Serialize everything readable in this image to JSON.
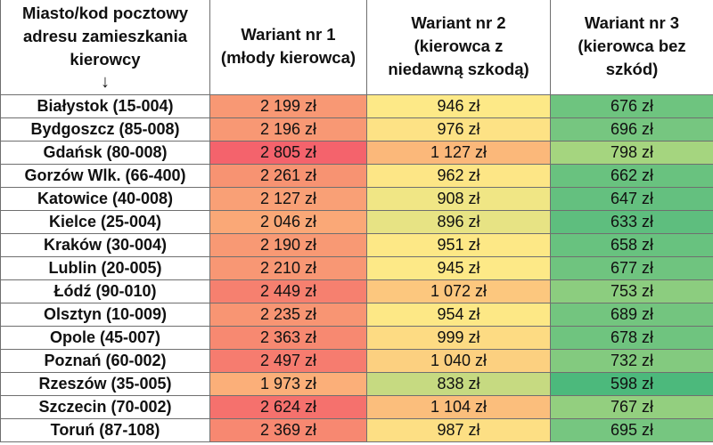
{
  "headers": {
    "city": [
      "Miasto/kod pocztowy",
      "adresu zamieszkania",
      "kierowcy"
    ],
    "city_arrow": "↓",
    "v1": [
      "Wariant nr 1",
      "(młody kierowca)"
    ],
    "v2": [
      "Wariant nr 2",
      "(kierowca z",
      "niedawną szkodą)"
    ],
    "v3": [
      "Wariant nr 3",
      "(kierowca bez",
      "szkód)"
    ]
  },
  "rows": [
    {
      "city": "Białystok (15-004)",
      "v1": "2 199 zł",
      "v2": "946 zł",
      "v3": "676 zł",
      "c1": "#f89874",
      "c2": "#fde987",
      "c3": "#6ec47f"
    },
    {
      "city": "Bydgoszcz (85-008)",
      "v1": "2 196 zł",
      "v2": "976 zł",
      "v3": "696 zł",
      "c1": "#f89874",
      "c2": "#fde285",
      "c3": "#76c680"
    },
    {
      "city": "Gdańsk (80-008)",
      "v1": "2 805 zł",
      "v2": "1 127 zł",
      "v3": "798 zł",
      "c1": "#f4636c",
      "c2": "#fbb87a",
      "c3": "#a5d57f"
    },
    {
      "city": "Gorzów Wlk. (66-400)",
      "v1": "2 261 zł",
      "v2": "962 zł",
      "v3": "662 zł",
      "c1": "#f79372",
      "c2": "#fde686",
      "c3": "#69c27f"
    },
    {
      "city": "Katowice (40-008)",
      "v1": "2 127 zł",
      "v2": "908 zł",
      "v3": "647 zł",
      "c1": "#f9a076",
      "c2": "#f0e685",
      "c3": "#64c07f"
    },
    {
      "city": "Kielce (25-004)",
      "v1": "2 046 zł",
      "v2": "896 zł",
      "v3": "633 zł",
      "c1": "#faa877",
      "c2": "#e7e384",
      "c3": "#5ebe7e"
    },
    {
      "city": "Kraków (30-004)",
      "v1": "2 190 zł",
      "v2": "951 zł",
      "v3": "658 zł",
      "c1": "#f89974",
      "c2": "#fde886",
      "c3": "#68c27f"
    },
    {
      "city": "Lublin (20-005)",
      "v1": "2 210 zł",
      "v2": "945 zł",
      "v3": "677 zł",
      "c1": "#f89774",
      "c2": "#fde987",
      "c3": "#6fc47f"
    },
    {
      "city": "Łódź (90-010)",
      "v1": "2 449 zł",
      "v2": "1 072 zł",
      "v3": "753 zł",
      "c1": "#f6806f",
      "c2": "#fcc77e",
      "c3": "#8ccd7f"
    },
    {
      "city": "Olsztyn (10-009)",
      "v1": "2 235 zł",
      "v2": "954 zł",
      "v3": "689 zł",
      "c1": "#f89573",
      "c2": "#fde886",
      "c3": "#73c57f"
    },
    {
      "city": "Opole (45-007)",
      "v1": "2 363 zł",
      "v2": "999 zł",
      "v3": "678 zł",
      "c1": "#f78971",
      "c2": "#fddb83",
      "c3": "#6fc47f"
    },
    {
      "city": "Poznań (60-002)",
      "v1": "2 497 zł",
      "v2": "1 040 zł",
      "v3": "732 zł",
      "c1": "#f67c6f",
      "c2": "#fcd080",
      "c3": "#83ca7f"
    },
    {
      "city": "Rzeszów (35-005)",
      "v1": "1 973 zł",
      "v2": "838 zł",
      "v3": "598 zł",
      "c1": "#fbaf79",
      "c2": "#c6da81",
      "c3": "#4cb97c"
    },
    {
      "city": "Szczecin (70-002)",
      "v1": "2 624 zł",
      "v2": "1 104 zł",
      "v3": "767 zł",
      "c1": "#f5716d",
      "c2": "#fbbe7c",
      "c3": "#93cf7f"
    },
    {
      "city": "Toruń (87-108)",
      "v1": "2 369 zł",
      "v2": "987 zł",
      "v3": "695 zł",
      "c1": "#f78871",
      "c2": "#fddf84",
      "c3": "#76c680"
    }
  ]
}
